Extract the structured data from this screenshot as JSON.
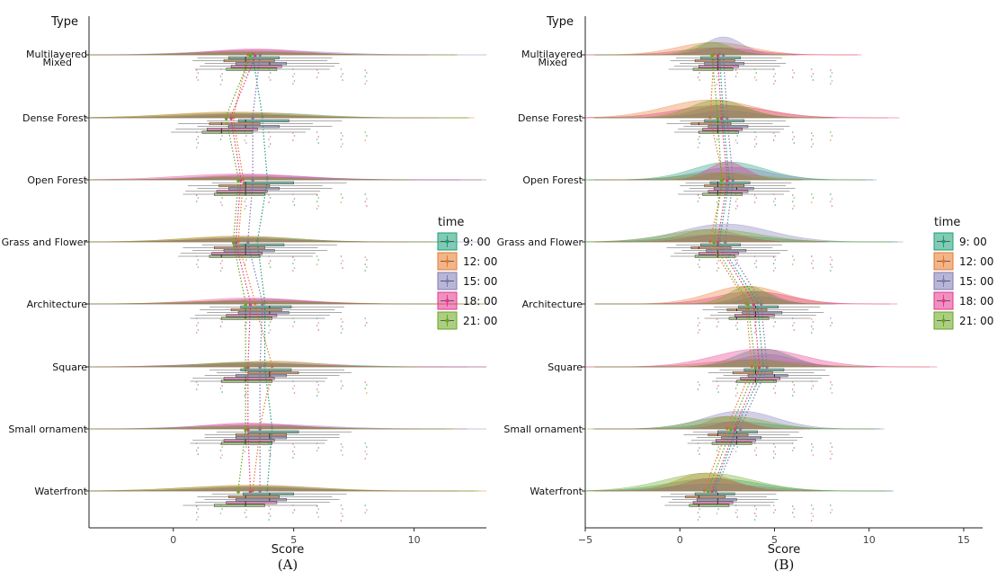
{
  "chart_data": [
    {
      "type": "raincloud",
      "panel_label": "(A)",
      "title": "",
      "xlabel": "Score",
      "ylabel": "Type",
      "xlim": [
        -3.5,
        13
      ],
      "xticks": [
        0,
        5,
        10
      ],
      "categories": [
        "Multilayered Mixed",
        "Dense Forest",
        "Open Forest",
        "Grass and Flower",
        "Architecture",
        "Square",
        "Small ornament",
        "Waterfront"
      ],
      "category_lines": [
        [
          "Multilayered",
          "Mixed"
        ],
        [
          "Dense Forest"
        ],
        [
          "Open Forest"
        ],
        [
          "Grass and Flower"
        ],
        [
          "Architecture"
        ],
        [
          "Square"
        ],
        [
          "Small ornament"
        ],
        [
          "Waterfront"
        ]
      ],
      "series": [
        {
          "name": "9: 00",
          "means": [
            3.3,
            3.7,
            3.9,
            3.5,
            3.8,
            3.8,
            4.1,
            3.9
          ],
          "medians": [
            3,
            3,
            3,
            3,
            4,
            3,
            3,
            4
          ]
        },
        {
          "name": "12: 00",
          "means": [
            3.1,
            2.5,
            2.9,
            2.7,
            3.4,
            4.1,
            3.6,
            3.3
          ],
          "medians": [
            3,
            2,
            3,
            3,
            3,
            4,
            4,
            3
          ]
        },
        {
          "name": "15: 00",
          "means": [
            3.6,
            3.3,
            3.3,
            3.1,
            3.7,
            3.6,
            3.6,
            3.6
          ],
          "medians": [
            4,
            3,
            3,
            3,
            4,
            4,
            4,
            4
          ]
        },
        {
          "name": "18: 00",
          "means": [
            3.4,
            2.4,
            2.8,
            2.6,
            3.2,
            3.1,
            3.1,
            3.2
          ],
          "medians": [
            3,
            2,
            3,
            3,
            3,
            3,
            3,
            3
          ]
        },
        {
          "name": "21: 00",
          "means": [
            3.2,
            2.2,
            2.7,
            2.5,
            3.0,
            3.0,
            3.0,
            2.7
          ],
          "medians": [
            3,
            2,
            3,
            2,
            3,
            3,
            3,
            3
          ]
        }
      ]
    },
    {
      "type": "raincloud",
      "panel_label": "(B)",
      "title": "",
      "xlabel": "Score",
      "ylabel": "Type",
      "xlim": [
        -5,
        16
      ],
      "xticks": [
        -5,
        0,
        5,
        10,
        15
      ],
      "categories": [
        "Multilayered Mixed",
        "Dense Forest",
        "Open Forest",
        "Grass and Flower",
        "Architecture",
        "Square",
        "Small ornament",
        "Waterfront"
      ],
      "category_lines": [
        [
          "Multilayered",
          "Mixed"
        ],
        [
          "Dense Forest"
        ],
        [
          "Open Forest"
        ],
        [
          "Grass and Flower"
        ],
        [
          "Architecture"
        ],
        [
          "Square"
        ],
        [
          "Small ornament"
        ],
        [
          "Waterfront"
        ]
      ],
      "series": [
        {
          "name": "9: 00",
          "means": [
            2.1,
            2.3,
            2.6,
            2.1,
            4.1,
            4.4,
            3.0,
            1.8
          ],
          "medians": [
            2,
            2,
            2,
            2,
            4,
            4,
            3,
            2
          ]
        },
        {
          "name": "12: 00",
          "means": [
            1.8,
            1.6,
            2.3,
            1.6,
            3.5,
            3.8,
            2.5,
            1.3
          ],
          "medians": [
            2,
            1,
            2,
            1,
            3,
            4,
            2,
            1
          ]
        },
        {
          "name": "15: 00",
          "means": [
            2.3,
            2.5,
            2.8,
            2.4,
            4.3,
            4.6,
            3.2,
            1.9
          ],
          "medians": [
            2,
            2,
            3,
            2,
            4,
            5,
            3,
            2
          ]
        },
        {
          "name": "18: 00",
          "means": [
            2.0,
            2.2,
            2.5,
            2.0,
            3.9,
            4.2,
            2.9,
            1.7
          ],
          "medians": [
            2,
            2,
            2,
            2,
            4,
            4,
            3,
            2
          ]
        },
        {
          "name": "21: 00",
          "means": [
            1.7,
            2.0,
            2.2,
            1.8,
            3.6,
            4.0,
            2.7,
            1.5
          ],
          "medians": [
            2,
            2,
            2,
            2,
            3,
            4,
            3,
            1
          ]
        }
      ]
    }
  ],
  "legend": {
    "title": "time",
    "colors": [
      "#1b9e77",
      "#e7782a",
      "#7e79b5",
      "#e4348d",
      "#66a61e"
    ]
  }
}
